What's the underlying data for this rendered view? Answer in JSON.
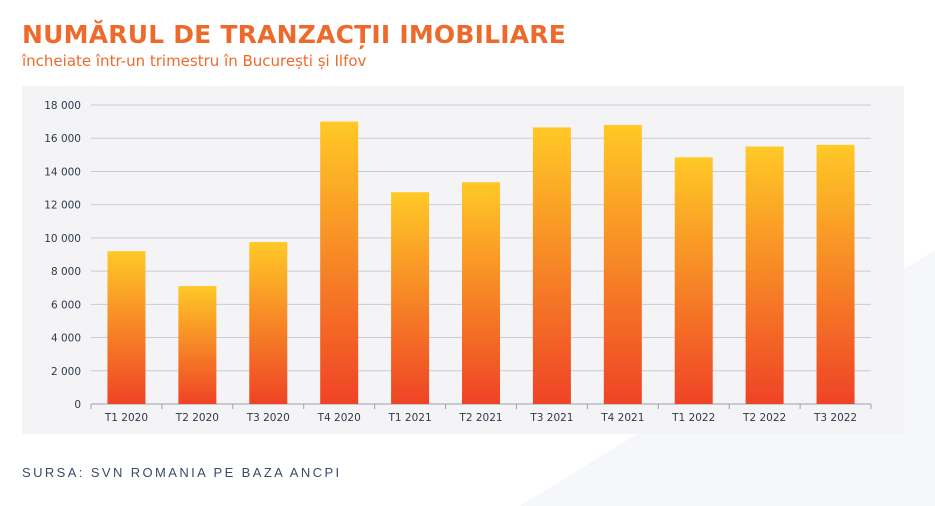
{
  "header": {
    "title": "NUMĂRUL DE TRANZACȚII IMOBILIARE",
    "subtitle": "încheiate într-un trimestru în București și Ilfov"
  },
  "footer": {
    "source": "SURSA: SVN ROMANIA PE BAZA ANCPI"
  },
  "colors": {
    "title": "#ee6a2c",
    "bar_top": "#ffc926",
    "bar_bottom": "#ef4326",
    "panel": "#f4f4f6",
    "grid": "#c9ccd2"
  },
  "chart_data": {
    "type": "bar",
    "categories": [
      "T1 2020",
      "T2 2020",
      "T3 2020",
      "T4 2020",
      "T1 2021",
      "T2 2021",
      "T3 2021",
      "T4 2021",
      "T1 2022",
      "T2 2022",
      "T3 2022"
    ],
    "series": [
      {
        "values": [
          9200,
          7100,
          9750,
          17000,
          12750,
          13350,
          16650,
          16800,
          14850,
          15500,
          15600
        ]
      }
    ],
    "title": "",
    "xlabel": "",
    "ylabel": "",
    "ylim": [
      0,
      18000
    ],
    "yticks": [
      0,
      2000,
      4000,
      6000,
      8000,
      10000,
      12000,
      14000,
      16000,
      18000
    ],
    "ytick_labels": [
      "0",
      "2 000",
      "4 000",
      "6 000",
      "8 000",
      "10 000",
      "12 000",
      "14 000",
      "16 000",
      "18 000"
    ],
    "grid": true,
    "legend": "none"
  }
}
